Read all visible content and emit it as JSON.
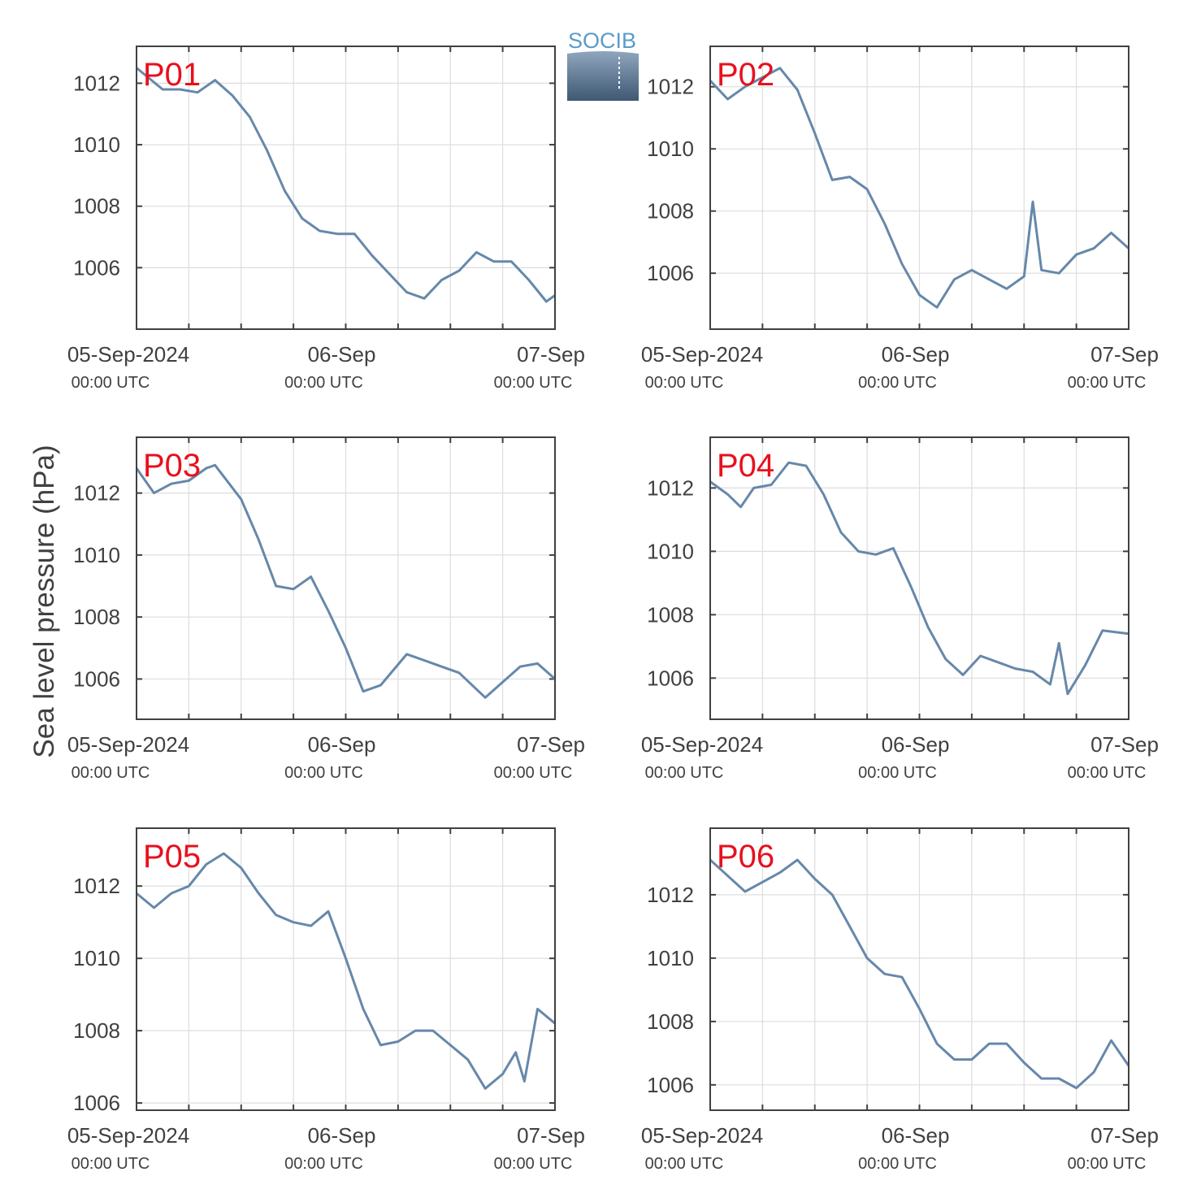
{
  "figure": {
    "ylabel": "Sea level pressure (hPa)",
    "logo_text": "SOCIB",
    "x_ticks": [
      {
        "label": "05-Sep-2024",
        "sublabel": "00:00 UTC"
      },
      {
        "label": "06-Sep",
        "sublabel": "00:00 UTC"
      },
      {
        "label": "07-Sep",
        "sublabel": "00:00 UTC"
      }
    ]
  },
  "colors": {
    "line": "#6688aa",
    "panel_label": "#e8101e",
    "grid": "#dddddd",
    "axes": "#404040"
  },
  "chart_data": [
    {
      "type": "line",
      "name": "P01",
      "xlabel": "",
      "ylabel": "Sea level pressure (hPa)",
      "xlim": [
        "2024-09-05T00:00",
        "2024-09-07T00:00"
      ],
      "ylim": [
        1004.0,
        1013.2
      ],
      "yticks": [
        1006,
        1008,
        1010,
        1012
      ],
      "grid": true,
      "x": [
        "2024-09-05T00:00",
        "2024-09-05T03:00",
        "2024-09-05T05:00",
        "2024-09-05T07:00",
        "2024-09-05T09:00",
        "2024-09-05T11:00",
        "2024-09-05T13:00",
        "2024-09-05T15:00",
        "2024-09-05T17:00",
        "2024-09-05T19:00",
        "2024-09-05T21:00",
        "2024-09-05T23:00",
        "2024-09-06T01:00",
        "2024-09-06T03:00",
        "2024-09-06T05:00",
        "2024-09-06T07:00",
        "2024-09-06T09:00",
        "2024-09-06T11:00",
        "2024-09-06T13:00",
        "2024-09-06T15:00",
        "2024-09-06T17:00",
        "2024-09-06T19:00",
        "2024-09-06T21:00",
        "2024-09-06T23:00",
        "2024-09-07T00:00"
      ],
      "values": [
        1012.5,
        1011.8,
        1011.8,
        1011.7,
        1012.1,
        1011.6,
        1010.9,
        1009.8,
        1008.5,
        1007.6,
        1007.2,
        1007.1,
        1007.1,
        1006.4,
        1005.8,
        1005.2,
        1005.0,
        1005.6,
        1005.9,
        1006.5,
        1006.2,
        1006.2,
        1005.6,
        1004.9,
        1005.1
      ]
    },
    {
      "type": "line",
      "name": "P02",
      "xlabel": "",
      "ylabel": "Sea level pressure (hPa)",
      "xlim": [
        "2024-09-05T00:00",
        "2024-09-07T00:00"
      ],
      "ylim": [
        1004.2,
        1013.3
      ],
      "yticks": [
        1006,
        1008,
        1010,
        1012
      ],
      "grid": true,
      "x": [
        "2024-09-05T00:00",
        "2024-09-05T02:00",
        "2024-09-05T04:00",
        "2024-09-05T06:00",
        "2024-09-05T08:00",
        "2024-09-05T10:00",
        "2024-09-05T12:00",
        "2024-09-05T14:00",
        "2024-09-05T16:00",
        "2024-09-05T18:00",
        "2024-09-05T20:00",
        "2024-09-05T22:00",
        "2024-09-06T00:00",
        "2024-09-06T02:00",
        "2024-09-06T04:00",
        "2024-09-06T06:00",
        "2024-09-06T08:00",
        "2024-09-06T10:00",
        "2024-09-06T12:00",
        "2024-09-06T13:00",
        "2024-09-06T14:00",
        "2024-09-06T16:00",
        "2024-09-06T18:00",
        "2024-09-06T20:00",
        "2024-09-06T22:00",
        "2024-09-07T00:00"
      ],
      "values": [
        1012.2,
        1011.6,
        1012.0,
        1012.3,
        1012.6,
        1011.9,
        1010.5,
        1009.0,
        1009.1,
        1008.7,
        1007.6,
        1006.3,
        1005.3,
        1004.9,
        1005.8,
        1006.1,
        1005.8,
        1005.5,
        1005.9,
        1008.3,
        1006.1,
        1006.0,
        1006.6,
        1006.8,
        1007.3,
        1006.8
      ]
    },
    {
      "type": "line",
      "name": "P03",
      "xlabel": "",
      "ylabel": "Sea level pressure (hPa)",
      "xlim": [
        "2024-09-05T00:00",
        "2024-09-07T00:00"
      ],
      "ylim": [
        1004.7,
        1013.8
      ],
      "yticks": [
        1006,
        1008,
        1010,
        1012
      ],
      "grid": true,
      "x": [
        "2024-09-05T00:00",
        "2024-09-05T02:00",
        "2024-09-05T04:00",
        "2024-09-05T06:00",
        "2024-09-05T08:00",
        "2024-09-05T09:00",
        "2024-09-05T12:00",
        "2024-09-05T14:00",
        "2024-09-05T16:00",
        "2024-09-05T18:00",
        "2024-09-05T20:00",
        "2024-09-05T22:00",
        "2024-09-06T00:00",
        "2024-09-06T02:00",
        "2024-09-06T04:00",
        "2024-09-06T07:00",
        "2024-09-06T09:00",
        "2024-09-06T11:00",
        "2024-09-06T13:00",
        "2024-09-06T16:00",
        "2024-09-06T18:00",
        "2024-09-06T20:00",
        "2024-09-06T22:00",
        "2024-09-07T00:00"
      ],
      "values": [
        1012.8,
        1012.0,
        1012.3,
        1012.4,
        1012.8,
        1012.9,
        1011.8,
        1010.5,
        1009.0,
        1008.9,
        1009.3,
        1008.2,
        1007.0,
        1005.6,
        1005.8,
        1006.8,
        1006.6,
        1006.4,
        1006.2,
        1005.4,
        1005.9,
        1006.4,
        1006.5,
        1006.0
      ]
    },
    {
      "type": "line",
      "name": "P04",
      "xlabel": "",
      "ylabel": "Sea level pressure (hPa)",
      "xlim": [
        "2024-09-05T00:00",
        "2024-09-07T00:00"
      ],
      "ylim": [
        1004.7,
        1013.6
      ],
      "yticks": [
        1006,
        1008,
        1010,
        1012
      ],
      "grid": true,
      "x": [
        "2024-09-05T00:00",
        "2024-09-05T02:00",
        "2024-09-05T03:30",
        "2024-09-05T05:00",
        "2024-09-05T07:00",
        "2024-09-05T09:00",
        "2024-09-05T11:00",
        "2024-09-05T13:00",
        "2024-09-05T15:00",
        "2024-09-05T17:00",
        "2024-09-05T19:00",
        "2024-09-05T21:00",
        "2024-09-05T23:00",
        "2024-09-06T01:00",
        "2024-09-06T03:00",
        "2024-09-06T05:00",
        "2024-09-06T07:00",
        "2024-09-06T09:00",
        "2024-09-06T11:00",
        "2024-09-06T13:00",
        "2024-09-06T15:00",
        "2024-09-06T16:00",
        "2024-09-06T17:00",
        "2024-09-06T19:00",
        "2024-09-06T21:00",
        "2024-09-07T00:00"
      ],
      "values": [
        1012.2,
        1011.8,
        1011.4,
        1012.0,
        1012.1,
        1012.8,
        1012.7,
        1011.8,
        1010.6,
        1010.0,
        1009.9,
        1010.1,
        1008.9,
        1007.6,
        1006.6,
        1006.1,
        1006.7,
        1006.5,
        1006.3,
        1006.2,
        1005.8,
        1007.1,
        1005.5,
        1006.4,
        1007.5,
        1007.4
      ]
    },
    {
      "type": "line",
      "name": "P05",
      "xlabel": "",
      "ylabel": "Sea level pressure (hPa)",
      "xlim": [
        "2024-09-05T00:00",
        "2024-09-07T00:00"
      ],
      "ylim": [
        1005.8,
        1013.6
      ],
      "yticks": [
        1006,
        1008,
        1010,
        1012
      ],
      "grid": true,
      "x": [
        "2024-09-05T00:00",
        "2024-09-05T02:00",
        "2024-09-05T04:00",
        "2024-09-05T06:00",
        "2024-09-05T08:00",
        "2024-09-05T10:00",
        "2024-09-05T12:00",
        "2024-09-05T14:00",
        "2024-09-05T16:00",
        "2024-09-05T18:00",
        "2024-09-05T20:00",
        "2024-09-05T22:00",
        "2024-09-06T00:00",
        "2024-09-06T02:00",
        "2024-09-06T04:00",
        "2024-09-06T06:00",
        "2024-09-06T08:00",
        "2024-09-06T10:00",
        "2024-09-06T12:00",
        "2024-09-06T14:00",
        "2024-09-06T16:00",
        "2024-09-06T18:00",
        "2024-09-06T19:30",
        "2024-09-06T20:30",
        "2024-09-06T22:00",
        "2024-09-07T00:00"
      ],
      "values": [
        1011.8,
        1011.4,
        1011.8,
        1012.0,
        1012.6,
        1012.9,
        1012.5,
        1011.8,
        1011.2,
        1011.0,
        1010.9,
        1011.3,
        1010.0,
        1008.6,
        1007.6,
        1007.7,
        1008.0,
        1008.0,
        1007.6,
        1007.2,
        1006.4,
        1006.8,
        1007.4,
        1006.6,
        1008.6,
        1008.2
      ]
    },
    {
      "type": "line",
      "name": "P06",
      "xlabel": "",
      "ylabel": "Sea level pressure (hPa)",
      "xlim": [
        "2024-09-05T00:00",
        "2024-09-07T00:00"
      ],
      "ylim": [
        1005.2,
        1014.1
      ],
      "yticks": [
        1006,
        1008,
        1010,
        1012
      ],
      "grid": true,
      "x": [
        "2024-09-05T00:00",
        "2024-09-05T02:00",
        "2024-09-05T04:00",
        "2024-09-05T06:00",
        "2024-09-05T08:00",
        "2024-09-05T10:00",
        "2024-09-05T12:00",
        "2024-09-05T14:00",
        "2024-09-05T16:00",
        "2024-09-05T18:00",
        "2024-09-05T20:00",
        "2024-09-05T22:00",
        "2024-09-06T00:00",
        "2024-09-06T02:00",
        "2024-09-06T04:00",
        "2024-09-06T06:00",
        "2024-09-06T08:00",
        "2024-09-06T10:00",
        "2024-09-06T12:00",
        "2024-09-06T14:00",
        "2024-09-06T16:00",
        "2024-09-06T18:00",
        "2024-09-06T20:00",
        "2024-09-06T22:00",
        "2024-09-07T00:00"
      ],
      "values": [
        1013.1,
        1012.6,
        1012.1,
        1012.4,
        1012.7,
        1013.1,
        1012.5,
        1012.0,
        1011.0,
        1010.0,
        1009.5,
        1009.4,
        1008.4,
        1007.3,
        1006.8,
        1006.8,
        1007.3,
        1007.3,
        1006.7,
        1006.2,
        1006.2,
        1005.9,
        1006.4,
        1007.4,
        1006.6
      ]
    }
  ]
}
